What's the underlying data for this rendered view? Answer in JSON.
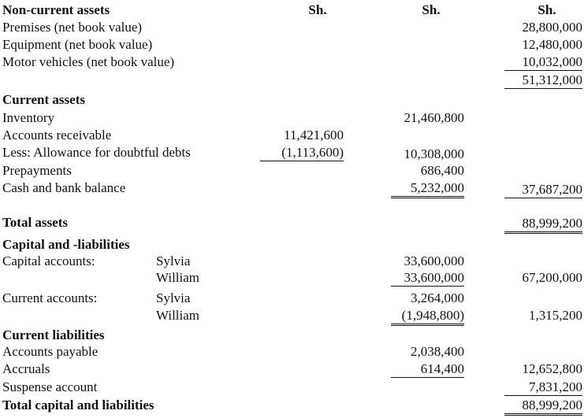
{
  "header": {
    "label": "Non-current assets",
    "columns": [
      "Sh.",
      "Sh.",
      "Sh."
    ]
  },
  "rows": [
    {
      "label": "Premises (net book value)",
      "c3": "28,800,000"
    },
    {
      "label": "Equipment (net book value)",
      "c3": "12,480,000"
    },
    {
      "label": "Motor vehicles (net book value)",
      "c3": "10,032,000"
    },
    {
      "c3": "51,312,000"
    },
    {
      "label": "Current assets"
    },
    {
      "label": "Inventory",
      "c2": "21,460,800"
    },
    {
      "label": "Accounts receivable",
      "c1": "11,421,600"
    },
    {
      "label": "Less: Allowance for doubtful debts",
      "c1": "(1,113,600)",
      "c2": "10,308,000"
    },
    {
      "label": "Prepayments",
      "c2": "686,400"
    },
    {
      "label": "Cash and bank balance",
      "c2": "5,232,000",
      "c3": "37,687,200"
    },
    {
      "label": "Total assets",
      "c3": "88,999,200"
    },
    {
      "label": "Capital and -liabilities"
    },
    {
      "label": "Capital accounts:",
      "sub": "Sylvia",
      "c2": "33,600,000"
    },
    {
      "sub": "William",
      "c2": "33,600,000",
      "c3": "67,200,000"
    },
    {
      "label": "Current accounts:",
      "sub": "Sylvia",
      "c2": "3,264,000"
    },
    {
      "sub": "William",
      "c2": "(1,948,800)",
      "c3": "1,315,200"
    },
    {
      "label": "Current liabilities"
    },
    {
      "label": "Accounts payable",
      "c2": "2,038,400"
    },
    {
      "label": "Accruals",
      "c2": "614,400",
      "c3": "12,652,800"
    },
    {
      "label": "Suspense account",
      "c3": "7,831,200"
    },
    {
      "label": "Total capital and liabilities",
      "c3": "88,999,200"
    }
  ]
}
